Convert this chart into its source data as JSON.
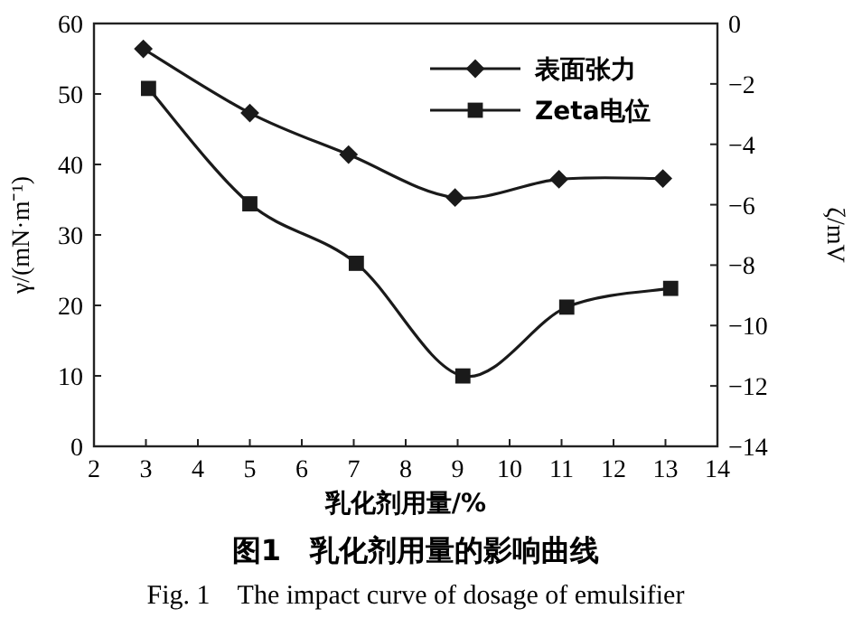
{
  "chart_data": {
    "type": "line",
    "title": "图1　乳化剂用量的影响曲线",
    "subtitle": "Fig. 1　The impact curve of dosage of emulsifier",
    "xlabel": "乳化剂用量/%",
    "ylabel": "γ/(mN·m⁻¹)",
    "y2label": "ζ/mV",
    "xlim": [
      2,
      14
    ],
    "xticks": [
      2,
      3,
      4,
      5,
      6,
      7,
      8,
      9,
      10,
      11,
      12,
      13,
      14
    ],
    "ylim": [
      0,
      60
    ],
    "yticks": [
      0,
      10,
      20,
      30,
      40,
      50,
      60
    ],
    "y2lim": [
      -14,
      0
    ],
    "y2ticks": [
      -14,
      -12,
      -10,
      -8,
      -6,
      -4,
      -2,
      0
    ],
    "legend": "top right",
    "series": [
      {
        "name": "表面张力",
        "color": "#1a1a1a",
        "marker": "diamond",
        "x": [
          2.95,
          5,
          6.9,
          8.95,
          10.95,
          12.95
        ],
        "values": [
          56.4,
          47.3,
          41.4,
          35.3,
          37.9,
          38.0
        ]
      },
      {
        "name": "Zeta电位",
        "color": "#1a1a1a",
        "marker": "square",
        "axis": "y2",
        "x": [
          3.05,
          5,
          7.05,
          9.1,
          11.1,
          13.1
        ],
        "values": [
          -2.15,
          -5.97,
          -7.94,
          -11.67,
          -9.39,
          -8.77
        ]
      }
    ]
  }
}
